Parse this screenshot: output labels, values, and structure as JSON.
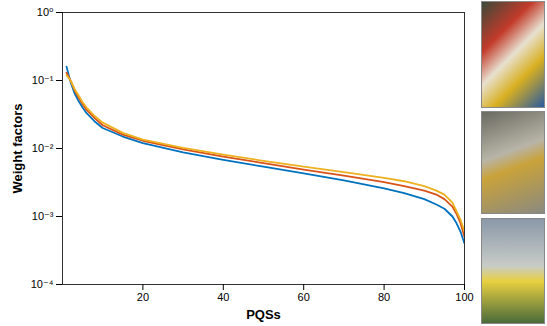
{
  "chart_data": {
    "type": "line",
    "x_label": "PQSs",
    "y_label": "Weight factors",
    "log": "y",
    "grid": false,
    "xlim": [
      0,
      100
    ],
    "xticks": [
      20,
      40,
      60,
      80,
      100
    ],
    "ylim": [
      0.0001,
      1
    ],
    "yticks": [
      {
        "value": 0.0001,
        "label": "10⁻⁴"
      },
      {
        "value": 0.001,
        "label": "10⁻³"
      },
      {
        "value": 0.01,
        "label": "10⁻²"
      },
      {
        "value": 0.1,
        "label": "10⁻¹"
      },
      {
        "value": 1,
        "label": "10⁰"
      }
    ],
    "x": [
      1,
      2,
      3,
      4,
      5,
      6,
      8,
      10,
      15,
      20,
      30,
      40,
      50,
      60,
      70,
      80,
      85,
      90,
      93,
      95,
      97,
      98,
      99,
      100
    ],
    "series": [
      {
        "color": "#0072BD",
        "values": [
          0.16,
          0.095,
          0.065,
          0.05,
          0.04,
          0.033,
          0.025,
          0.02,
          0.015,
          0.012,
          0.0088,
          0.0068,
          0.0054,
          0.0043,
          0.0034,
          0.0026,
          0.0022,
          0.0018,
          0.0015,
          0.0013,
          0.001,
          0.0008,
          0.0006,
          0.0004
        ]
      },
      {
        "color": "#D95319",
        "values": [
          0.13,
          0.1,
          0.072,
          0.056,
          0.045,
          0.037,
          0.028,
          0.022,
          0.016,
          0.013,
          0.0097,
          0.0076,
          0.0061,
          0.0049,
          0.004,
          0.0032,
          0.0028,
          0.0024,
          0.0021,
          0.0018,
          0.0014,
          0.0011,
          0.0008,
          0.0005
        ]
      },
      {
        "color": "#EDB120",
        "values": [
          0.12,
          0.1,
          0.075,
          0.06,
          0.048,
          0.04,
          0.03,
          0.024,
          0.017,
          0.0135,
          0.0102,
          0.0081,
          0.0066,
          0.0054,
          0.0045,
          0.0037,
          0.0033,
          0.0028,
          0.0024,
          0.0021,
          0.0016,
          0.0012,
          0.0009,
          0.0006
        ]
      }
    ]
  }
}
